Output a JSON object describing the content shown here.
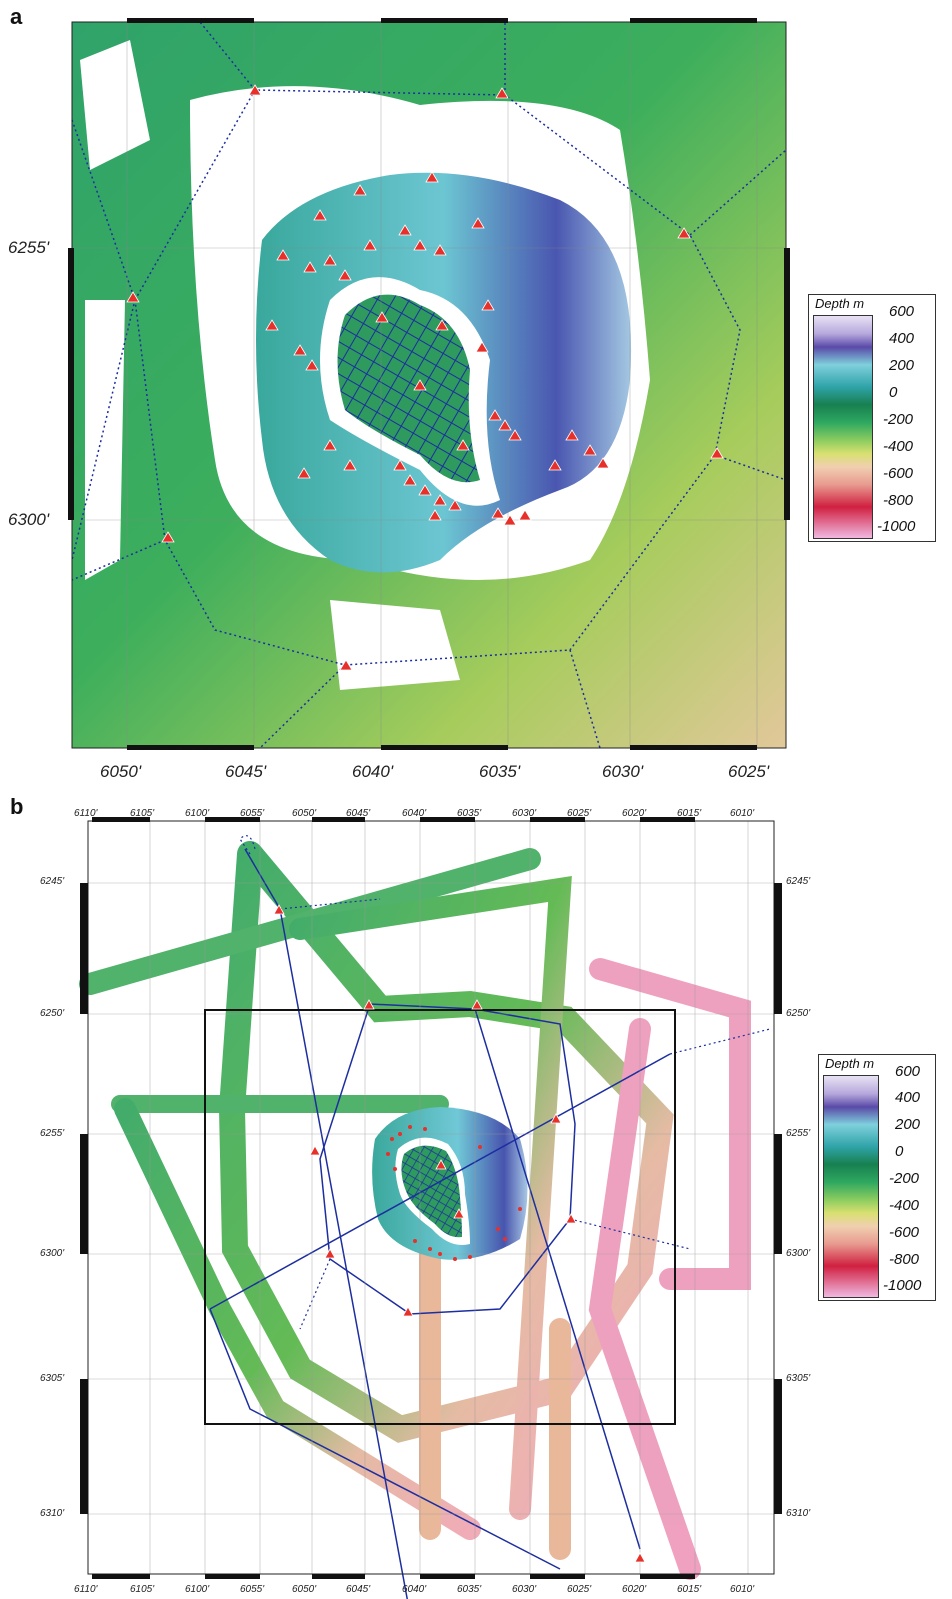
{
  "panel_a": {
    "letter": "a",
    "x_labels": [
      "6050'",
      "6045'",
      "6040'",
      "6035'",
      "6030'",
      "6025'"
    ],
    "y_labels": [
      "6255'",
      "6300'"
    ]
  },
  "panel_b": {
    "letter": "b",
    "x_labels": [
      "6110'",
      "6105'",
      "6100'",
      "6055'",
      "6050'",
      "6045'",
      "6040'",
      "6035'",
      "6030'",
      "6025'",
      "6020'",
      "6015'",
      "6010'"
    ],
    "y_labels": [
      "6245'",
      "6250'",
      "6255'",
      "6300'",
      "6305'",
      "6310'"
    ]
  },
  "legend": {
    "title": "Depth m",
    "ticks": [
      "600",
      "400",
      "200",
      "0",
      "-200",
      "-400",
      "-600",
      "-800",
      "-1000"
    ]
  },
  "colors": {
    "station_marker": "#e8302a",
    "track_line": "#1c2ea0",
    "shallow": "#5a4aa8",
    "mid": "#2ea860",
    "deep": "#e89a90"
  }
}
